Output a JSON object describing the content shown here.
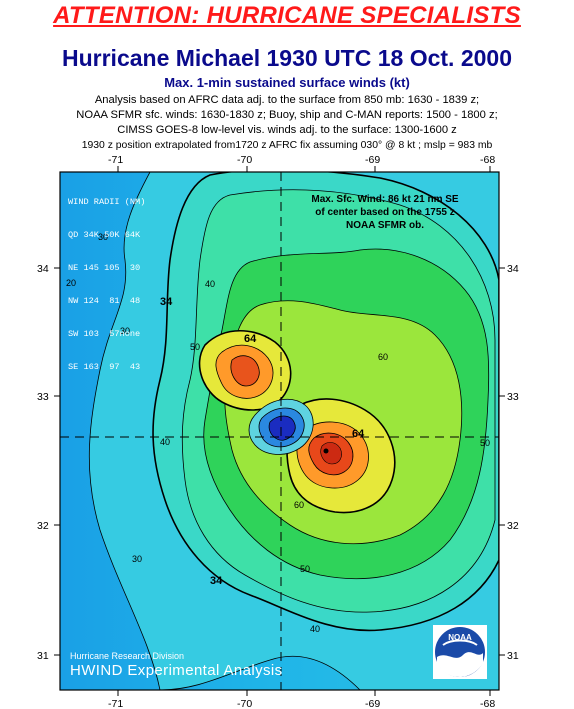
{
  "header": {
    "attention": "ATTENTION: HURRICANE SPECIALISTS",
    "title": "Hurricane Michael 1930 UTC 18 Oct. 2000",
    "subtitle": "Max. 1-min sustained surface winds (kt)",
    "notes": [
      "Analysis based on AFRC data adj. to the surface from 850 mb: 1630 - 1839 z;",
      "NOAA SFMR sfc. winds: 1630-1830 z; Buoy, ship and C-MAN reports: 1500 - 1800 z;",
      "CIMSS GOES-8 low-level vis. winds adj. to the surface: 1300-1600 z",
      "1930 z position extrapolated from1720 z AFRC fix assuming 030° @ 8 kt ; mslp = 983 mb"
    ]
  },
  "axes": {
    "lon_ticks": [
      "-71",
      "-70",
      "-69",
      "-68"
    ],
    "lat_ticks": [
      "34",
      "33",
      "32",
      "31"
    ]
  },
  "wind_radii": {
    "lines": [
      "WIND RADII (NM)",
      "QD 34K 50K 64K",
      "NE 145 105  30",
      "NW 124  81  48",
      "SW 103  57none",
      "SE 163  97  43"
    ]
  },
  "max_wind": {
    "lines": [
      "Max. Sfc. Wind: 86 kt 21 nm SE",
      "of center based on the 1755 z",
      "NOAA SFMR ob."
    ]
  },
  "contour_labels": [
    "30",
    "30",
    "30",
    "34",
    "34",
    "40",
    "40",
    "40",
    "50",
    "50",
    "50",
    "60",
    "60",
    "64",
    "64",
    "20"
  ],
  "footer": {
    "credit": "Hurricane Research Division",
    "product": "HWIND Experimental Analysis"
  },
  "colors": {
    "attention": "#ff1a1a",
    "title": "#0a0a8c",
    "ocean_low": "#1aa0e6",
    "ocean_mid": "#3fcfe0",
    "band_cyan_green": "#3ee0b0",
    "band_green": "#2fd35a",
    "band_yellow_green": "#a8e83a",
    "band_yellow": "#e8e83a",
    "band_orange": "#ff9a2a",
    "band_red": "#e84a1a",
    "eye_blue": "#1a3cd0"
  },
  "logo_text": "NOAA"
}
